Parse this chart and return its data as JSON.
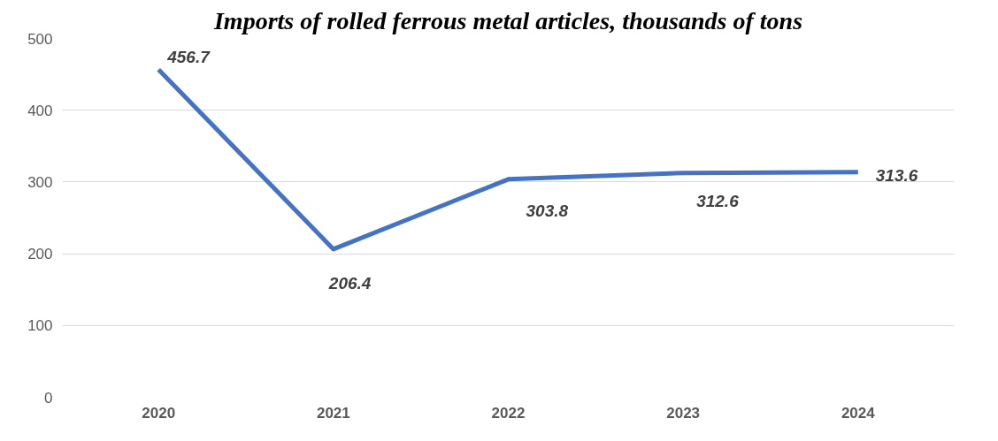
{
  "chart_data": {
    "type": "line",
    "title": "Imports of rolled ferrous metal articles, thousands of tons",
    "categories": [
      "2020",
      "2021",
      "2022",
      "2023",
      "2024"
    ],
    "series": [
      {
        "color": "#4472c4",
        "values": [
          456.7,
          206.4,
          303.8,
          312.6,
          313.6
        ]
      }
    ],
    "ylim": [
      0,
      500
    ],
    "yticks": [
      0,
      100,
      200,
      300,
      400,
      500
    ],
    "grid": "y",
    "data_labels": true,
    "marker": "none",
    "line_style": "solid"
  }
}
